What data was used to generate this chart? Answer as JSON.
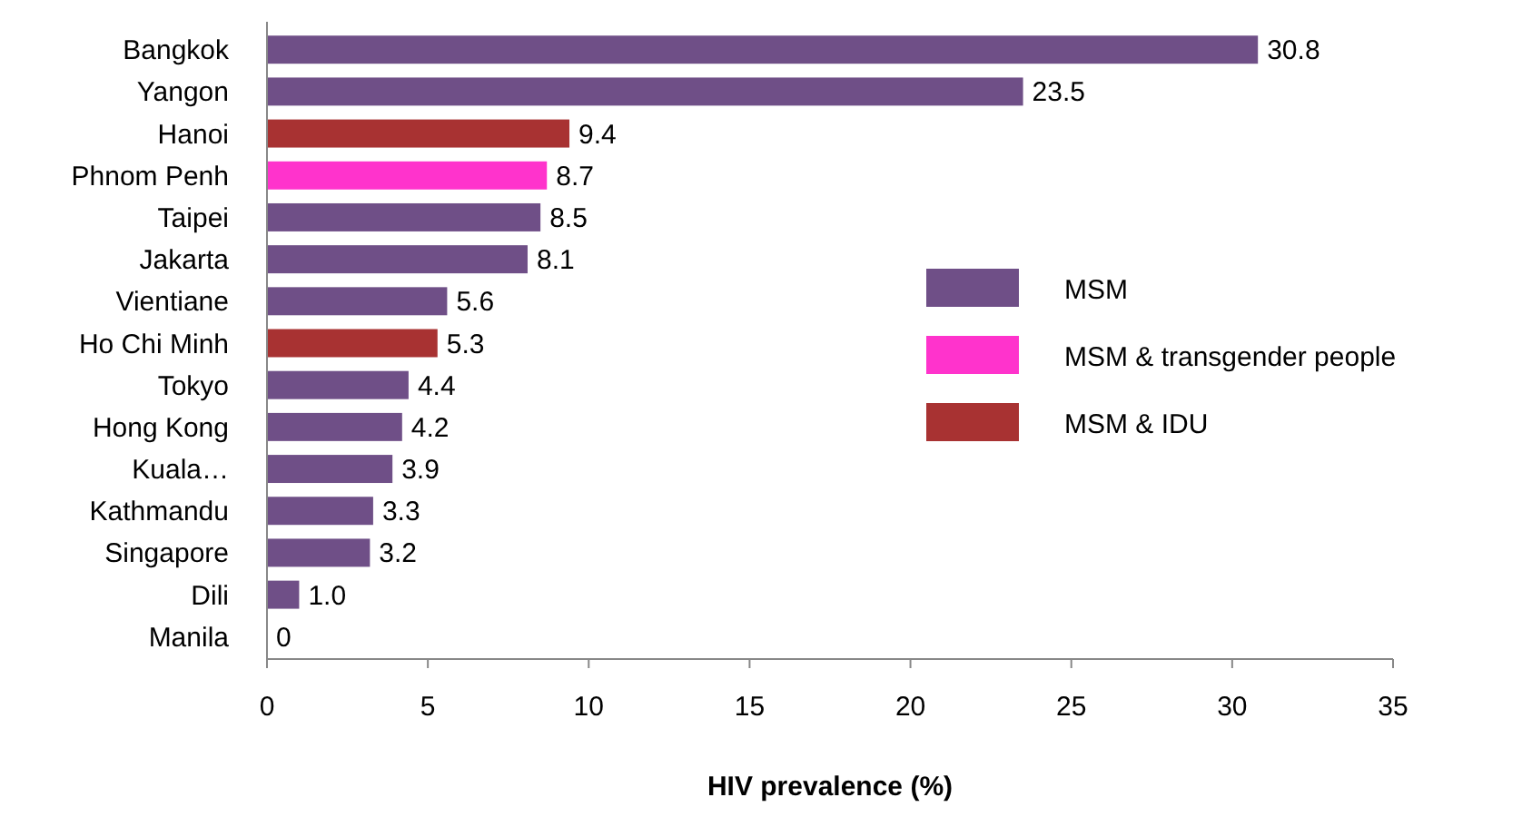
{
  "chart_data": {
    "type": "bar",
    "orientation": "horizontal",
    "xlabel": "HIV prevalence (%)",
    "categories": [
      "Bangkok",
      "Yangon",
      "Hanoi",
      "Phnom Penh",
      "Taipei",
      "Jakarta",
      "Vientiane",
      "Ho Chi Minh",
      "Tokyo",
      "Hong Kong",
      "Kuala…",
      "Kathmandu",
      "Singapore",
      "Dili",
      "Manila"
    ],
    "series": [
      {
        "name": "MSM",
        "color": "#6f4f87",
        "values": [
          30.8,
          23.5,
          null,
          null,
          8.5,
          8.1,
          5.6,
          null,
          4.4,
          4.2,
          3.9,
          3.3,
          3.2,
          1.0,
          0
        ],
        "value_labels": [
          "30.8",
          "23.5",
          null,
          null,
          "8.5",
          "8.1",
          "5.6",
          null,
          "4.4",
          "4.2",
          "3.9",
          "3.3",
          "3.2",
          "1.0",
          "0"
        ]
      },
      {
        "name": "MSM & transgender people",
        "color": "#ff33cc",
        "values": [
          null,
          null,
          null,
          8.7,
          null,
          null,
          null,
          null,
          null,
          null,
          null,
          null,
          null,
          null,
          null
        ],
        "value_labels": [
          null,
          null,
          null,
          "8.7",
          null,
          null,
          null,
          null,
          null,
          null,
          null,
          null,
          null,
          null,
          null
        ]
      },
      {
        "name": "MSM & IDU",
        "color": "#a83232",
        "values": [
          null,
          null,
          9.4,
          null,
          null,
          null,
          null,
          5.3,
          null,
          null,
          null,
          null,
          null,
          null,
          null
        ],
        "value_labels": [
          null,
          null,
          "9.4",
          null,
          null,
          null,
          null,
          "5.3",
          null,
          null,
          null,
          null,
          null,
          null,
          null
        ]
      }
    ],
    "xlim": [
      0,
      35
    ],
    "xticks": [
      0,
      5,
      10,
      15,
      20,
      25,
      30,
      35
    ],
    "legend": "right",
    "grid": false
  }
}
